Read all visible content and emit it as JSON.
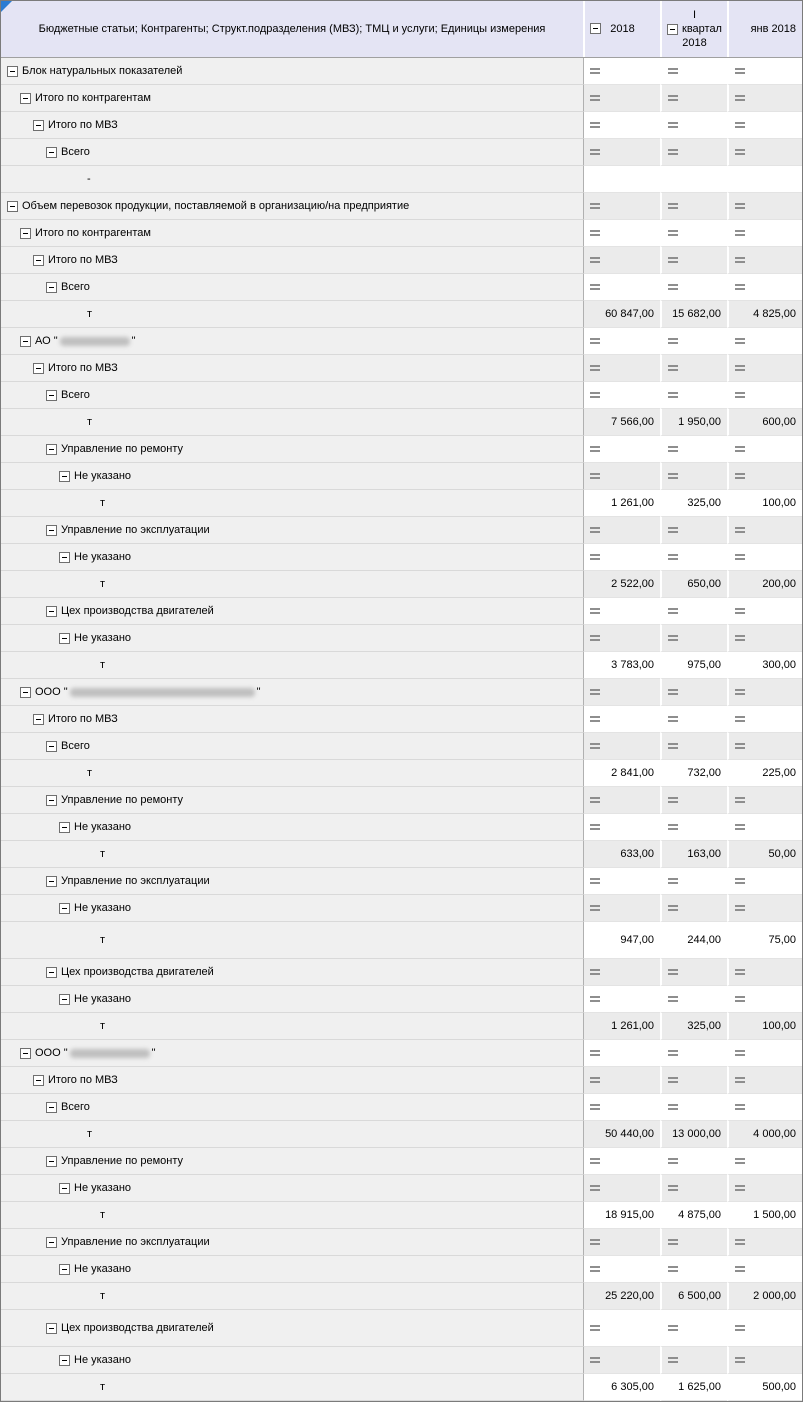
{
  "header": {
    "corner_label": "Бюджетные статьи; Контрагенты; Структ.подразделения (МВЗ); ТМЦ и услуги; Единицы измерения",
    "columns": [
      {
        "id": "year-2018",
        "label": "2018",
        "collapsible": true
      },
      {
        "id": "q1-2018",
        "label_line1": "I",
        "label_line2": "квартал",
        "label_line3": "2018",
        "collapsible": true
      },
      {
        "id": "jan-2018",
        "label": "янв 2018",
        "collapsible": false
      }
    ]
  },
  "icons": {
    "collapse_minus": "minus-box-icon",
    "collapsed_values": "equals-icon",
    "corner_triangle": "corner-triangle-icon"
  },
  "colors": {
    "header_bg": "#e4e4f4",
    "label_col_bg": "#f0f0f0",
    "zebra_gray": "#ebebeb",
    "triangle_blue": "#2b7cd3",
    "frame": "#7b7b7b",
    "eq_icon": "#8e8e8e"
  },
  "rows": [
    {
      "type": "group",
      "level": 0,
      "label": "Блок натуральных показателей"
    },
    {
      "type": "group",
      "level": 1,
      "label": "Итого по контрагентам"
    },
    {
      "type": "group",
      "level": 2,
      "label": "Итого по МВЗ"
    },
    {
      "type": "group",
      "level": 3,
      "label": "Всего"
    },
    {
      "type": "dash",
      "level": 4,
      "label": "-"
    },
    {
      "type": "group",
      "level": 0,
      "label": "Объем перевозок продукции, поставляемой в организацию/на предприятие"
    },
    {
      "type": "group",
      "level": 1,
      "label": "Итого по контрагентам"
    },
    {
      "type": "group",
      "level": 2,
      "label": "Итого по МВЗ"
    },
    {
      "type": "group",
      "level": 3,
      "label": "Всего"
    },
    {
      "type": "unit",
      "level": 4,
      "label": "т",
      "values": [
        "60 847,00",
        "15 682,00",
        "4 825,00"
      ]
    },
    {
      "type": "group",
      "level": 1,
      "label": "АО \"",
      "label_suffix": "\"",
      "redacted": true,
      "redact_width": 70
    },
    {
      "type": "group",
      "level": 2,
      "label": "Итого по МВЗ"
    },
    {
      "type": "group",
      "level": 3,
      "label": "Всего"
    },
    {
      "type": "unit",
      "level": 4,
      "label": "т",
      "values": [
        "7 566,00",
        "1 950,00",
        "600,00"
      ]
    },
    {
      "type": "group",
      "level": 3,
      "label": "Управление по ремонту"
    },
    {
      "type": "group",
      "level": 4,
      "label": "Не указано"
    },
    {
      "type": "unit",
      "level": 5,
      "label": "т",
      "values": [
        "1 261,00",
        "325,00",
        "100,00"
      ]
    },
    {
      "type": "group",
      "level": 3,
      "label": "Управление по эксплуатации"
    },
    {
      "type": "group",
      "level": 4,
      "label": "Не указано"
    },
    {
      "type": "unit",
      "level": 5,
      "label": "т",
      "values": [
        "2 522,00",
        "650,00",
        "200,00"
      ]
    },
    {
      "type": "group",
      "level": 3,
      "label": "Цех производства двигателей"
    },
    {
      "type": "group",
      "level": 4,
      "label": "Не указано"
    },
    {
      "type": "unit",
      "level": 5,
      "label": "т",
      "values": [
        "3 783,00",
        "975,00",
        "300,00"
      ]
    },
    {
      "type": "group",
      "level": 1,
      "label": "ООО \"",
      "label_suffix": "\"",
      "redacted": true,
      "redact_width": 185
    },
    {
      "type": "group",
      "level": 2,
      "label": "Итого по МВЗ"
    },
    {
      "type": "group",
      "level": 3,
      "label": "Всего"
    },
    {
      "type": "unit",
      "level": 4,
      "label": "т",
      "values": [
        "2 841,00",
        "732,00",
        "225,00"
      ]
    },
    {
      "type": "group",
      "level": 3,
      "label": "Управление по ремонту"
    },
    {
      "type": "group",
      "level": 4,
      "label": "Не указано"
    },
    {
      "type": "unit",
      "level": 5,
      "label": "т",
      "values": [
        "633,00",
        "163,00",
        "50,00"
      ]
    },
    {
      "type": "group",
      "level": 3,
      "label": "Управление по эксплуатации"
    },
    {
      "type": "group",
      "level": 4,
      "label": "Не указано"
    },
    {
      "type": "unit",
      "level": 5,
      "label": "т",
      "values": [
        "947,00",
        "244,00",
        "75,00"
      ],
      "height": 36
    },
    {
      "type": "group",
      "level": 3,
      "label": "Цех производства двигателей"
    },
    {
      "type": "group",
      "level": 4,
      "label": "Не указано"
    },
    {
      "type": "unit",
      "level": 5,
      "label": "т",
      "values": [
        "1 261,00",
        "325,00",
        "100,00"
      ]
    },
    {
      "type": "group",
      "level": 1,
      "label": "ООО \"",
      "label_suffix": "\"",
      "redacted": true,
      "redact_width": 80
    },
    {
      "type": "group",
      "level": 2,
      "label": "Итого по МВЗ"
    },
    {
      "type": "group",
      "level": 3,
      "label": "Всего"
    },
    {
      "type": "unit",
      "level": 4,
      "label": "т",
      "values": [
        "50 440,00",
        "13 000,00",
        "4 000,00"
      ]
    },
    {
      "type": "group",
      "level": 3,
      "label": "Управление по ремонту"
    },
    {
      "type": "group",
      "level": 4,
      "label": "Не указано"
    },
    {
      "type": "unit",
      "level": 5,
      "label": "т",
      "values": [
        "18 915,00",
        "4 875,00",
        "1 500,00"
      ]
    },
    {
      "type": "group",
      "level": 3,
      "label": "Управление по эксплуатации"
    },
    {
      "type": "group",
      "level": 4,
      "label": "Не указано"
    },
    {
      "type": "unit",
      "level": 5,
      "label": "т",
      "values": [
        "25 220,00",
        "6 500,00",
        "2 000,00"
      ]
    },
    {
      "type": "group",
      "level": 3,
      "label": "Цех производства двигателей",
      "height": 36
    },
    {
      "type": "group",
      "level": 4,
      "label": "Не указано"
    },
    {
      "type": "unit",
      "level": 5,
      "label": "т",
      "values": [
        "6 305,00",
        "1 625,00",
        "500,00"
      ]
    }
  ]
}
